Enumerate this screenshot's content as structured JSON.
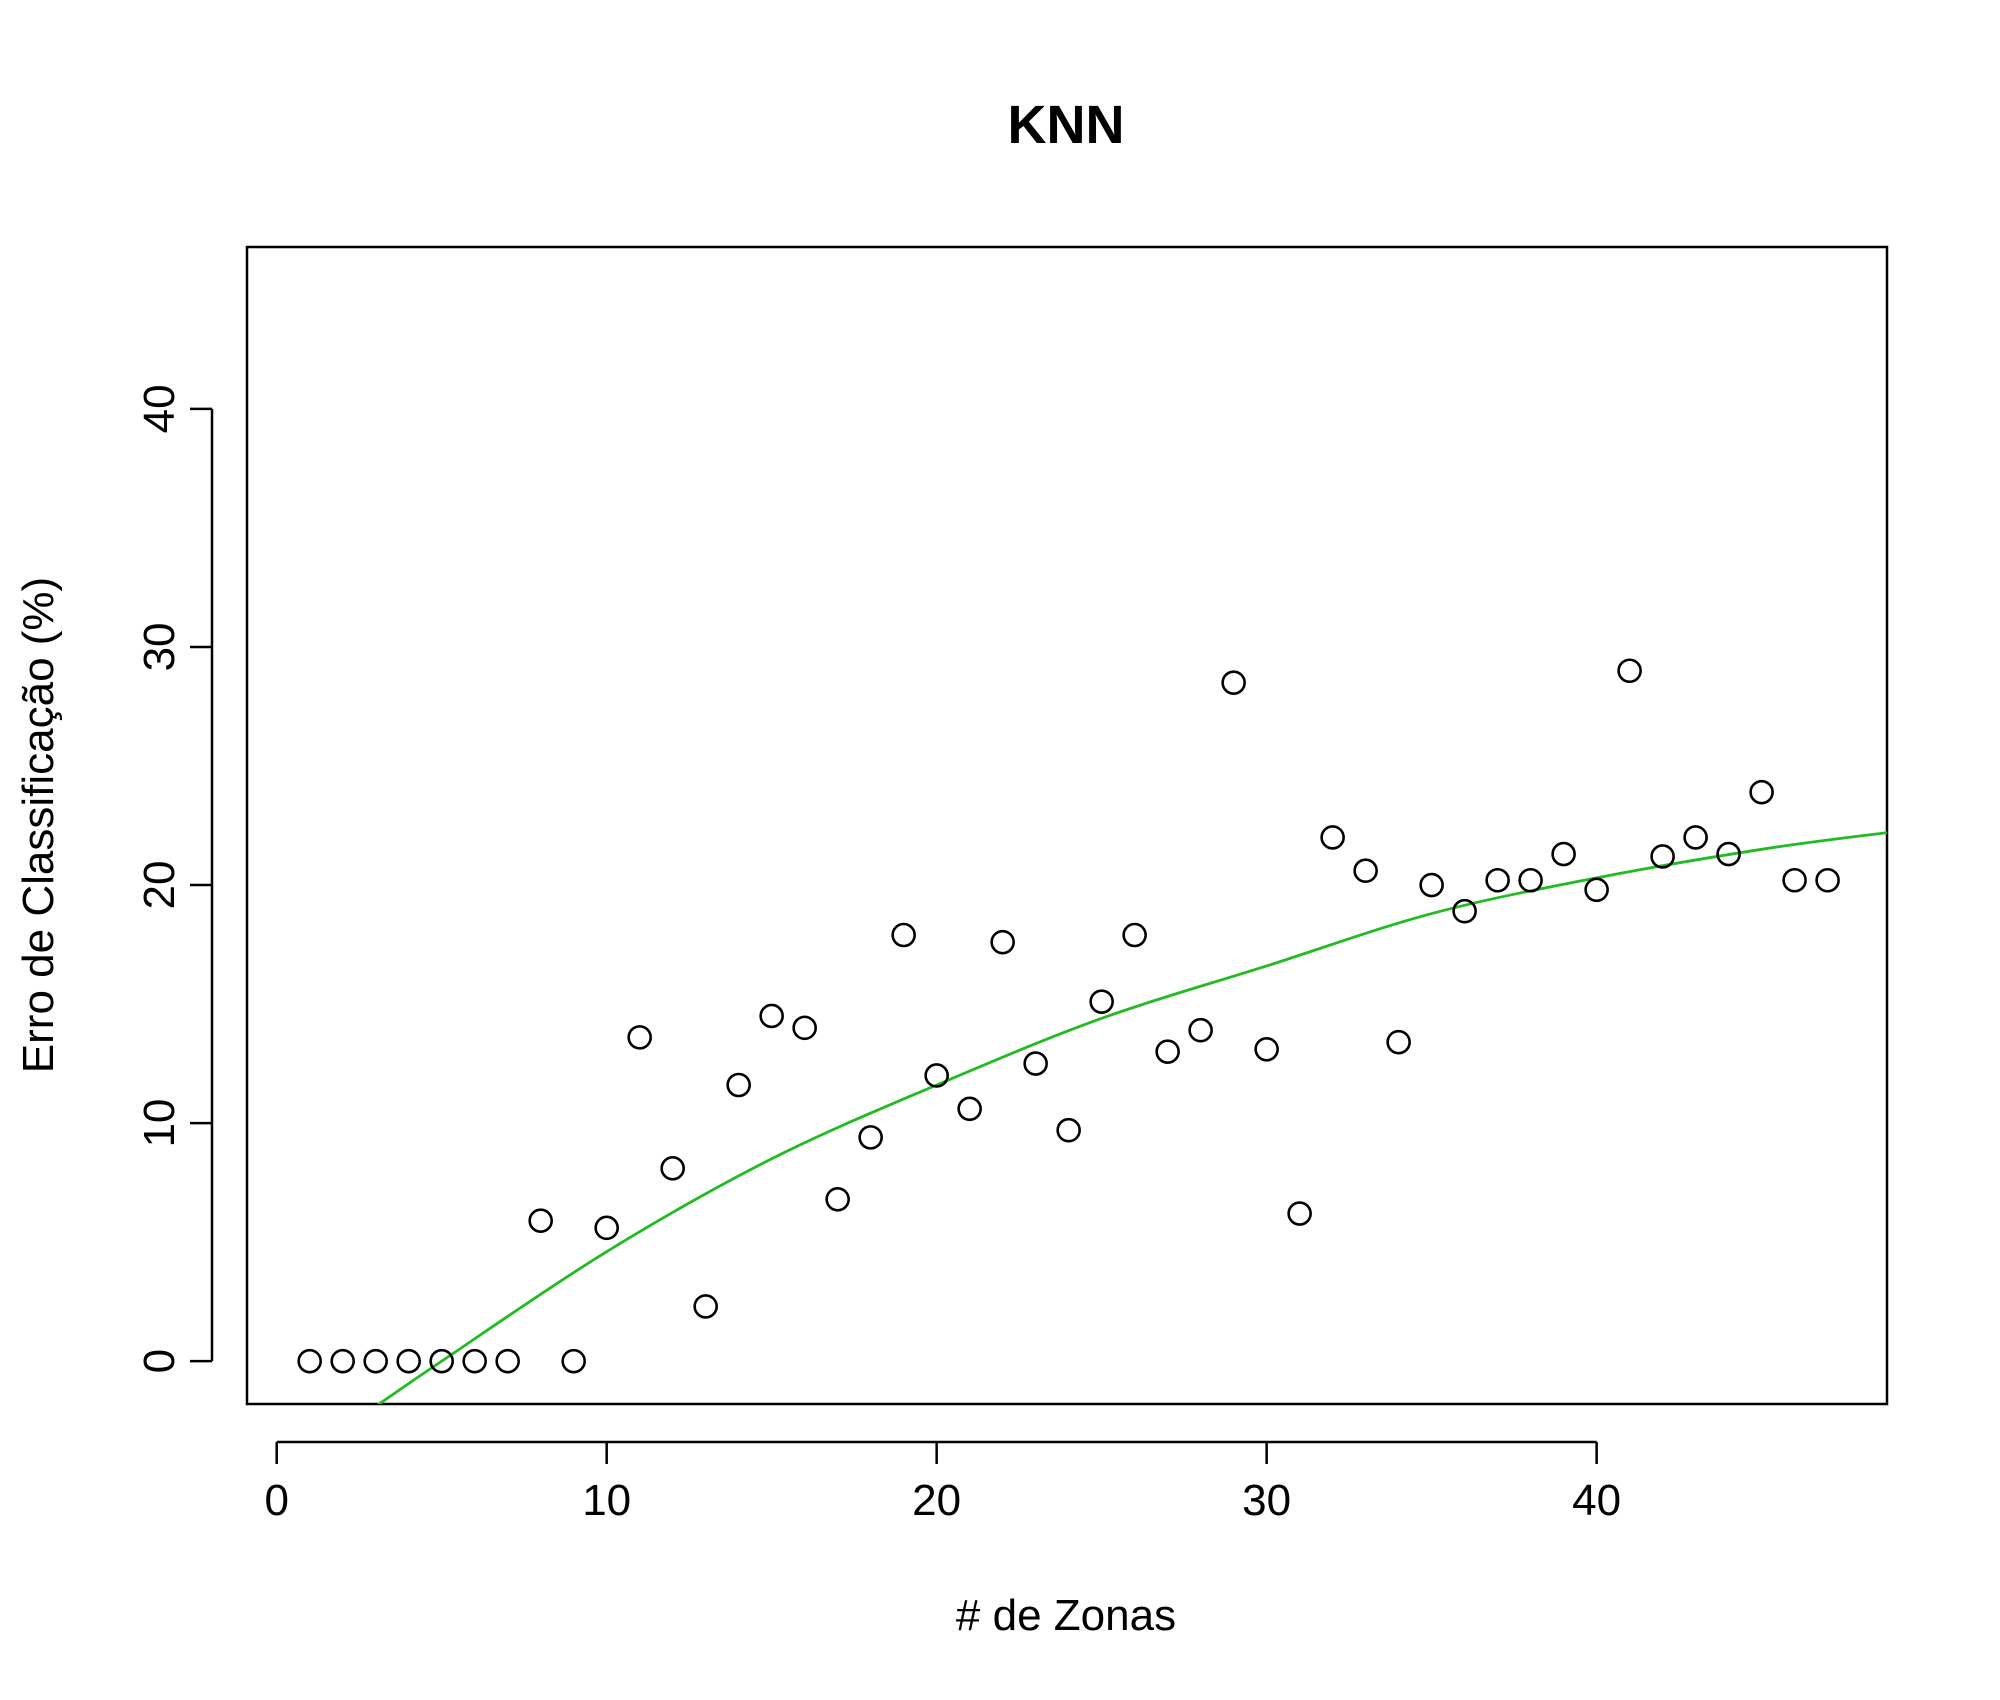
{
  "chart_data": {
    "type": "scatter",
    "title": "KNN",
    "xlabel": "# de Zonas",
    "ylabel": "Erro de Classificação (%)",
    "xlim": [
      -0.9,
      48.8
    ],
    "ylim": [
      -1.8,
      46.8
    ],
    "x_ticks": [
      0,
      10,
      20,
      30,
      40
    ],
    "y_ticks": [
      0,
      10,
      20,
      30,
      40
    ],
    "x_tick_labels": [
      "0",
      "10",
      "20",
      "30",
      "40"
    ],
    "y_tick_labels": [
      "0",
      "10",
      "20",
      "30",
      "40"
    ],
    "grid": false,
    "legend": "none",
    "series": [
      {
        "kind": "points",
        "marker": "open-circle",
        "color": "#000000",
        "x": [
          1,
          2,
          3,
          4,
          5,
          6,
          7,
          8,
          9,
          10,
          11,
          12,
          13,
          14,
          15,
          16,
          17,
          18,
          19,
          20,
          21,
          22,
          23,
          24,
          25,
          26,
          27,
          28,
          29,
          30,
          31,
          32,
          33,
          34,
          35,
          36,
          37,
          38,
          39,
          40,
          41,
          42,
          43,
          44,
          45,
          46,
          47
        ],
        "y": [
          0,
          0,
          0,
          0,
          0,
          0,
          0,
          5.9,
          0,
          5.6,
          13.6,
          8.1,
          2.3,
          11.6,
          14.5,
          14.0,
          6.8,
          9.4,
          17.9,
          12.0,
          10.6,
          17.6,
          12.5,
          9.7,
          15.1,
          17.9,
          13.0,
          13.9,
          28.5,
          13.1,
          6.2,
          22.0,
          20.6,
          13.4,
          20.0,
          18.9,
          20.2,
          20.2,
          21.3,
          19.8,
          29.0,
          21.2,
          22.0,
          21.3,
          23.9,
          20.2,
          20.2
        ]
      },
      {
        "kind": "fit-line",
        "color": "#22bb22",
        "x": [
          3,
          5,
          10,
          15,
          20,
          25,
          30,
          35,
          40,
          45,
          48.8
        ],
        "y": [
          -1.9,
          0,
          4.6,
          8.5,
          11.6,
          14.4,
          16.6,
          18.8,
          20.3,
          21.5,
          22.2
        ]
      }
    ]
  }
}
